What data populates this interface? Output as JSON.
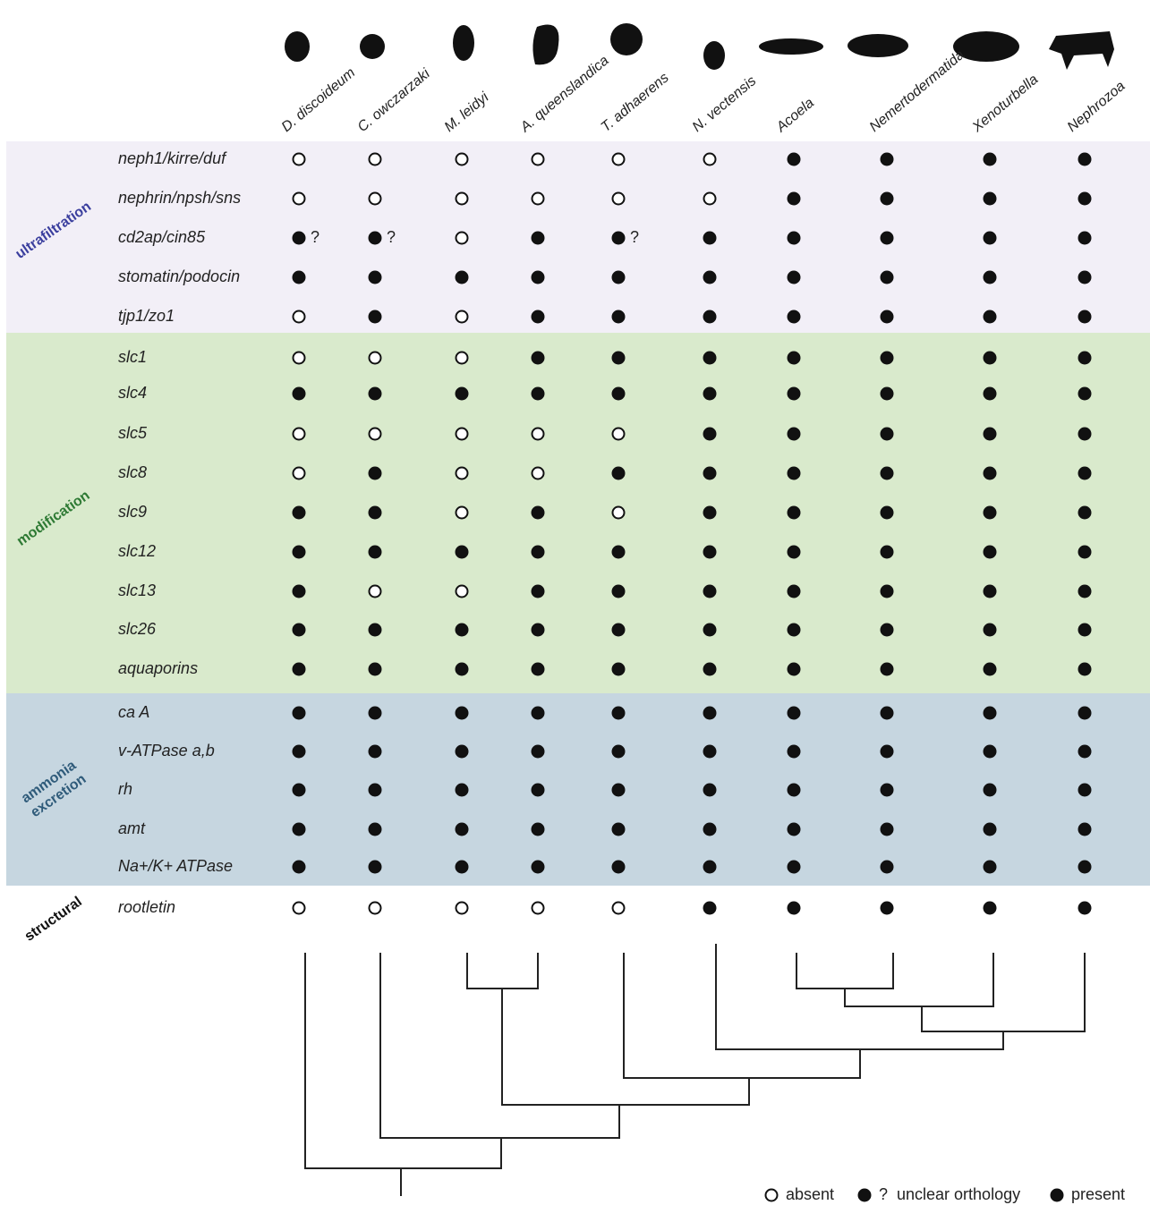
{
  "species": [
    "D. discoideum",
    "C. owczarzaki",
    "M. leidyi",
    "A. queenslandica",
    "T. adhaerens",
    "N. vectensis",
    "Acoela",
    "Nemertodermatida",
    "Xenoturbella",
    "Nephrozoa"
  ],
  "legend": [
    {
      "label": "absent"
    },
    {
      "label": "unclear orthology",
      "mark": "?"
    },
    {
      "label": "present"
    }
  ],
  "groups": [
    {
      "label_lines": [
        "ultrafiltration"
      ],
      "color": "#f2eff7",
      "label_color": "#3b3f9e",
      "rows": [
        {
          "gene": "neph1/kirre/duf",
          "cells": [
            0,
            0,
            0,
            0,
            0,
            0,
            2,
            2,
            2,
            2
          ]
        },
        {
          "gene": "nephrin/npsh/sns",
          "cells": [
            0,
            0,
            0,
            0,
            0,
            0,
            2,
            2,
            2,
            2
          ]
        },
        {
          "gene": "cd2ap/cin85",
          "cells": [
            1,
            1,
            0,
            2,
            1,
            2,
            2,
            2,
            2,
            2
          ]
        },
        {
          "gene": "stomatin/podocin",
          "cells": [
            2,
            2,
            2,
            2,
            2,
            2,
            2,
            2,
            2,
            2
          ]
        },
        {
          "gene": "tjp1/zo1",
          "cells": [
            0,
            2,
            0,
            2,
            2,
            2,
            2,
            2,
            2,
            2
          ]
        }
      ]
    },
    {
      "label_lines": [
        "modification"
      ],
      "color": "#d9eacc",
      "label_color": "#2e7a34",
      "rows": [
        {
          "gene": "slc1",
          "cells": [
            0,
            0,
            0,
            2,
            2,
            2,
            2,
            2,
            2,
            2
          ]
        },
        {
          "gene": "slc4",
          "cells": [
            2,
            2,
            2,
            2,
            2,
            2,
            2,
            2,
            2,
            2
          ]
        },
        {
          "gene": "slc5",
          "cells": [
            0,
            0,
            0,
            0,
            0,
            2,
            2,
            2,
            2,
            2
          ]
        },
        {
          "gene": "slc8",
          "cells": [
            0,
            2,
            0,
            0,
            2,
            2,
            2,
            2,
            2,
            2
          ]
        },
        {
          "gene": "slc9",
          "cells": [
            2,
            2,
            0,
            2,
            0,
            2,
            2,
            2,
            2,
            2
          ]
        },
        {
          "gene": "slc12",
          "cells": [
            2,
            2,
            2,
            2,
            2,
            2,
            2,
            2,
            2,
            2
          ]
        },
        {
          "gene": "slc13",
          "cells": [
            2,
            0,
            0,
            2,
            2,
            2,
            2,
            2,
            2,
            2
          ]
        },
        {
          "gene": "slc26",
          "cells": [
            2,
            2,
            2,
            2,
            2,
            2,
            2,
            2,
            2,
            2
          ]
        },
        {
          "gene": "aquaporins",
          "cells": [
            2,
            2,
            2,
            2,
            2,
            2,
            2,
            2,
            2,
            2
          ]
        }
      ]
    },
    {
      "label_lines": [
        "ammonia",
        "excretion"
      ],
      "color": "#c6d6e0",
      "label_color": "#2f5b7a",
      "rows": [
        {
          "gene": "ca A",
          "cells": [
            2,
            2,
            2,
            2,
            2,
            2,
            2,
            2,
            2,
            2
          ]
        },
        {
          "gene": "v-ATPase a,b",
          "cells": [
            2,
            2,
            2,
            2,
            2,
            2,
            2,
            2,
            2,
            2
          ]
        },
        {
          "gene": "rh",
          "cells": [
            2,
            2,
            2,
            2,
            2,
            2,
            2,
            2,
            2,
            2
          ]
        },
        {
          "gene": "amt",
          "cells": [
            2,
            2,
            2,
            2,
            2,
            2,
            2,
            2,
            2,
            2
          ]
        },
        {
          "gene": "Na+/K+ ATPase",
          "cells": [
            2,
            2,
            2,
            2,
            2,
            2,
            2,
            2,
            2,
            2
          ]
        }
      ]
    },
    {
      "label_lines": [
        "structural"
      ],
      "color": "#ffffff",
      "label_color": "#111111",
      "rows": [
        {
          "gene": "rootletin",
          "cells": [
            0,
            0,
            0,
            0,
            0,
            2,
            2,
            2,
            2,
            2
          ]
        }
      ]
    }
  ]
}
